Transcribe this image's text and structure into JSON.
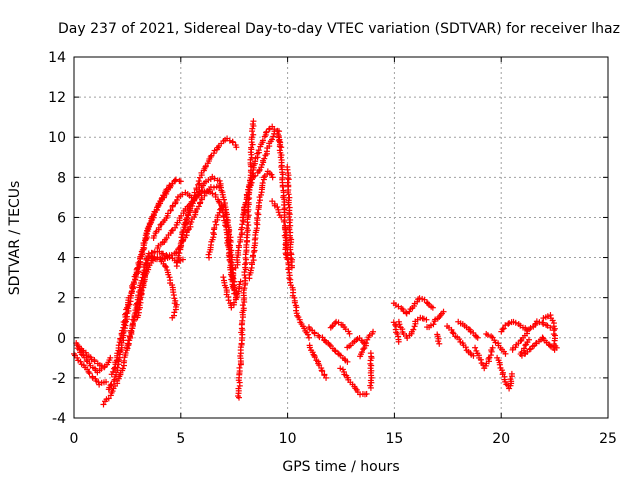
{
  "chart_data": {
    "type": "scatter",
    "title": "Day 237 of 2021, Sidereal Day-to-day VTEC variation (SDTVAR) for receiver lhaz",
    "xlabel": "GPS time / hours",
    "ylabel": "SDTVAR / TECUs",
    "xlim": [
      0,
      25
    ],
    "ylim": [
      -4,
      14
    ],
    "xticks": [
      0,
      5,
      10,
      15,
      20,
      25
    ],
    "yticks": [
      -4,
      -2,
      0,
      2,
      4,
      6,
      8,
      10,
      12,
      14
    ],
    "grid": true,
    "marker": "+",
    "color": "#ff0000",
    "tracks": [
      [
        [
          0.0,
          -0.8
        ],
        [
          0.3,
          -1.2
        ],
        [
          0.6,
          -1.6
        ],
        [
          0.9,
          -2.0
        ],
        [
          1.2,
          -2.3
        ],
        [
          1.5,
          -2.2
        ]
      ],
      [
        [
          0.2,
          -0.5
        ],
        [
          0.5,
          -1.0
        ],
        [
          0.8,
          -1.4
        ],
        [
          1.1,
          -1.7
        ],
        [
          1.4,
          -1.5
        ],
        [
          1.7,
          -1.0
        ]
      ],
      [
        [
          0.1,
          -0.3
        ],
        [
          0.4,
          -0.6
        ],
        [
          0.7,
          -0.9
        ],
        [
          1.0,
          -1.2
        ],
        [
          1.3,
          -1.4
        ]
      ],
      [
        [
          1.4,
          -3.3
        ],
        [
          1.7,
          -2.9
        ],
        [
          2.0,
          -2.3
        ],
        [
          2.3,
          -1.5
        ],
        [
          2.5,
          -0.5
        ],
        [
          2.7,
          0.5
        ],
        [
          2.9,
          1.5
        ],
        [
          3.1,
          2.5
        ],
        [
          3.3,
          3.5
        ],
        [
          3.5,
          4.2
        ]
      ],
      [
        [
          1.6,
          -2.6
        ],
        [
          1.9,
          -2.1
        ],
        [
          2.1,
          -1.2
        ],
        [
          2.3,
          0.0
        ],
        [
          2.5,
          1.2
        ],
        [
          2.7,
          2.2
        ],
        [
          2.9,
          3.0
        ],
        [
          3.1,
          3.8
        ],
        [
          3.3,
          4.6
        ],
        [
          3.5,
          5.4
        ],
        [
          3.7,
          6.0
        ],
        [
          3.9,
          6.5
        ],
        [
          4.1,
          6.9
        ],
        [
          4.3,
          7.3
        ],
        [
          4.5,
          7.6
        ],
        [
          4.7,
          7.8
        ]
      ],
      [
        [
          1.8,
          -1.8
        ],
        [
          2.0,
          -1.0
        ],
        [
          2.2,
          0.0
        ],
        [
          2.4,
          1.0
        ],
        [
          2.6,
          2.0
        ],
        [
          2.8,
          2.8
        ],
        [
          3.0,
          3.6
        ],
        [
          3.2,
          4.4
        ],
        [
          3.4,
          5.2
        ],
        [
          3.6,
          5.8
        ],
        [
          3.8,
          6.3
        ],
        [
          4.0,
          6.7
        ],
        [
          4.2,
          7.0
        ],
        [
          4.4,
          7.4
        ],
        [
          4.6,
          7.7
        ],
        [
          4.8,
          7.9
        ],
        [
          5.0,
          7.8
        ]
      ],
      [
        [
          2.5,
          -0.5
        ],
        [
          2.8,
          0.8
        ],
        [
          3.1,
          2.0
        ],
        [
          3.4,
          3.3
        ],
        [
          3.7,
          4.0
        ],
        [
          4.0,
          4.0
        ],
        [
          4.3,
          3.5
        ],
        [
          4.6,
          2.5
        ],
        [
          4.8,
          1.5
        ],
        [
          4.6,
          1.0
        ]
      ],
      [
        [
          3.0,
          1.0
        ],
        [
          3.2,
          2.5
        ],
        [
          3.4,
          3.6
        ],
        [
          3.6,
          4.2
        ],
        [
          3.9,
          4.3
        ],
        [
          4.2,
          4.2
        ],
        [
          4.5,
          4.0
        ],
        [
          4.8,
          3.8
        ],
        [
          5.1,
          3.9
        ]
      ],
      [
        [
          3.7,
          5.0
        ],
        [
          4.0,
          5.5
        ],
        [
          4.3,
          6.0
        ],
        [
          4.6,
          6.5
        ],
        [
          4.9,
          7.0
        ],
        [
          5.2,
          7.2
        ],
        [
          5.5,
          7.0
        ]
      ],
      [
        [
          3.6,
          4.0
        ],
        [
          4.0,
          3.9
        ],
        [
          4.4,
          4.0
        ],
        [
          4.8,
          4.3
        ],
        [
          5.2,
          5.0
        ],
        [
          5.6,
          6.0
        ],
        [
          6.0,
          7.0
        ],
        [
          6.4,
          7.5
        ],
        [
          6.8,
          7.5
        ]
      ],
      [
        [
          3.9,
          4.5
        ],
        [
          4.2,
          4.8
        ],
        [
          4.5,
          5.2
        ],
        [
          4.8,
          5.6
        ],
        [
          5.1,
          6.2
        ],
        [
          5.4,
          6.6
        ],
        [
          5.7,
          7.0
        ],
        [
          6.0,
          7.3
        ],
        [
          6.3,
          7.3
        ],
        [
          6.6,
          7.1
        ],
        [
          6.9,
          6.6
        ],
        [
          7.1,
          5.5
        ],
        [
          7.3,
          4.0
        ],
        [
          7.5,
          2.8
        ]
      ],
      [
        [
          4.8,
          3.6
        ],
        [
          5.0,
          4.5
        ],
        [
          5.2,
          5.5
        ],
        [
          5.4,
          6.3
        ],
        [
          5.6,
          7.0
        ],
        [
          5.8,
          7.6
        ],
        [
          6.0,
          8.2
        ],
        [
          6.2,
          8.6
        ],
        [
          6.4,
          9.0
        ],
        [
          6.6,
          9.3
        ],
        [
          6.8,
          9.6
        ],
        [
          7.0,
          9.8
        ],
        [
          7.2,
          9.9
        ],
        [
          7.4,
          9.8
        ],
        [
          7.6,
          9.5
        ]
      ],
      [
        [
          5.0,
          5.0
        ],
        [
          5.3,
          6.0
        ],
        [
          5.6,
          6.8
        ],
        [
          5.9,
          7.4
        ],
        [
          6.2,
          7.8
        ],
        [
          6.5,
          8.0
        ],
        [
          6.8,
          7.8
        ],
        [
          7.0,
          7.0
        ],
        [
          7.2,
          5.5
        ],
        [
          7.3,
          4.0
        ],
        [
          7.4,
          2.8
        ],
        [
          7.5,
          2.2
        ]
      ],
      [
        [
          6.3,
          4.0
        ],
        [
          6.5,
          5.0
        ],
        [
          6.7,
          6.0
        ],
        [
          6.9,
          6.6
        ],
        [
          7.1,
          6.4
        ],
        [
          7.3,
          5.0
        ],
        [
          7.4,
          3.5
        ],
        [
          7.5,
          2.5
        ],
        [
          7.6,
          2.0
        ]
      ],
      [
        [
          7.0,
          3.0
        ],
        [
          7.2,
          2.0
        ],
        [
          7.4,
          1.5
        ],
        [
          7.6,
          2.0
        ],
        [
          7.8,
          2.8
        ]
      ],
      [
        [
          7.7,
          -3.0
        ],
        [
          7.75,
          -2.0
        ],
        [
          7.8,
          -1.0
        ],
        [
          7.85,
          0.0
        ],
        [
          7.9,
          1.0
        ],
        [
          7.95,
          2.0
        ],
        [
          8.0,
          3.0
        ],
        [
          8.05,
          4.0
        ],
        [
          8.1,
          5.0
        ],
        [
          8.15,
          6.0
        ],
        [
          8.2,
          7.0
        ],
        [
          8.25,
          8.0
        ],
        [
          8.3,
          9.0
        ],
        [
          8.35,
          10.0
        ],
        [
          8.4,
          10.8
        ]
      ],
      [
        [
          7.6,
          3.5
        ],
        [
          7.8,
          5.0
        ],
        [
          8.0,
          6.5
        ],
        [
          8.2,
          7.5
        ],
        [
          8.4,
          8.0
        ],
        [
          8.6,
          8.2
        ],
        [
          8.8,
          8.6
        ],
        [
          9.0,
          9.2
        ],
        [
          9.2,
          9.8
        ],
        [
          9.4,
          10.3
        ],
        [
          9.6,
          10.3
        ]
      ],
      [
        [
          7.9,
          6.0
        ],
        [
          8.1,
          7.0
        ],
        [
          8.3,
          8.0
        ],
        [
          8.5,
          8.8
        ],
        [
          8.7,
          9.5
        ],
        [
          8.9,
          10.0
        ],
        [
          9.1,
          10.4
        ],
        [
          9.3,
          10.5
        ],
        [
          9.5,
          10.3
        ],
        [
          9.7,
          9.5
        ]
      ],
      [
        [
          8.2,
          3.0
        ],
        [
          8.4,
          4.0
        ],
        [
          8.5,
          5.0
        ],
        [
          8.6,
          6.0
        ],
        [
          8.7,
          7.0
        ],
        [
          8.9,
          8.0
        ],
        [
          9.1,
          8.3
        ],
        [
          9.3,
          8.0
        ]
      ],
      [
        [
          9.3,
          6.8
        ],
        [
          9.5,
          6.5
        ],
        [
          9.7,
          6.0
        ]
      ],
      [
        [
          9.6,
          10.0
        ],
        [
          9.7,
          9.0
        ],
        [
          9.8,
          7.5
        ],
        [
          9.85,
          6.0
        ],
        [
          9.9,
          5.0
        ],
        [
          9.95,
          4.0
        ]
      ],
      [
        [
          10.0,
          8.5
        ],
        [
          10.05,
          7.0
        ],
        [
          10.1,
          5.5
        ],
        [
          10.15,
          4.5
        ],
        [
          10.2,
          3.5
        ]
      ],
      [
        [
          9.9,
          5.5
        ],
        [
          10.0,
          4.0
        ],
        [
          10.1,
          3.0
        ],
        [
          10.3,
          2.0
        ],
        [
          10.5,
          1.0
        ],
        [
          10.8,
          0.5
        ],
        [
          11.0,
          0.0
        ]
      ],
      [
        [
          11.0,
          -0.4
        ],
        [
          11.2,
          -0.8
        ],
        [
          11.4,
          -1.2
        ],
        [
          11.6,
          -1.6
        ],
        [
          11.8,
          -2.0
        ]
      ],
      [
        [
          11.0,
          0.5
        ],
        [
          11.3,
          0.2
        ],
        [
          11.6,
          0.0
        ],
        [
          11.9,
          -0.3
        ],
        [
          12.2,
          -0.6
        ],
        [
          12.5,
          -0.9
        ],
        [
          12.8,
          -1.2
        ]
      ],
      [
        [
          12.0,
          0.5
        ],
        [
          12.3,
          0.8
        ],
        [
          12.6,
          0.6
        ],
        [
          12.9,
          0.2
        ]
      ],
      [
        [
          12.5,
          -1.5
        ],
        [
          12.8,
          -2.0
        ],
        [
          13.1,
          -2.4
        ],
        [
          13.4,
          -2.8
        ],
        [
          13.7,
          -2.8
        ]
      ],
      [
        [
          12.8,
          -0.5
        ],
        [
          13.1,
          -0.2
        ],
        [
          13.4,
          0.0
        ],
        [
          13.6,
          -0.3
        ]
      ],
      [
        [
          13.4,
          -0.9
        ],
        [
          13.6,
          -0.5
        ],
        [
          13.8,
          0.0
        ],
        [
          14.0,
          0.3
        ]
      ],
      [
        [
          13.9,
          -0.8
        ],
        [
          13.9,
          -2.5
        ]
      ],
      [
        [
          15.0,
          1.7
        ],
        [
          15.3,
          1.5
        ],
        [
          15.6,
          1.2
        ],
        [
          15.9,
          1.6
        ],
        [
          16.2,
          2.0
        ],
        [
          16.5,
          1.8
        ],
        [
          16.8,
          1.5
        ]
      ],
      [
        [
          15.2,
          0.8
        ],
        [
          15.4,
          0.3
        ],
        [
          15.6,
          0.0
        ],
        [
          15.8,
          0.2
        ],
        [
          16.0,
          0.8
        ],
        [
          16.2,
          1.0
        ],
        [
          16.5,
          0.9
        ]
      ],
      [
        [
          15.0,
          0.8
        ],
        [
          15.1,
          0.3
        ],
        [
          15.2,
          -0.2
        ]
      ],
      [
        [
          16.5,
          0.5
        ],
        [
          16.8,
          0.7
        ],
        [
          17.0,
          1.0
        ],
        [
          17.3,
          1.3
        ]
      ],
      [
        [
          17.0,
          0.2
        ],
        [
          17.1,
          -0.3
        ]
      ],
      [
        [
          17.5,
          0.6
        ],
        [
          17.8,
          0.2
        ],
        [
          18.1,
          -0.2
        ],
        [
          18.4,
          -0.6
        ],
        [
          18.7,
          -0.9
        ]
      ],
      [
        [
          18.0,
          0.8
        ],
        [
          18.3,
          0.6
        ],
        [
          18.6,
          0.3
        ],
        [
          18.9,
          0.0
        ]
      ],
      [
        [
          18.8,
          -0.5
        ],
        [
          19.0,
          -1.0
        ],
        [
          19.2,
          -1.5
        ],
        [
          19.4,
          -1.2
        ],
        [
          19.6,
          -0.5
        ]
      ],
      [
        [
          19.3,
          0.2
        ],
        [
          19.6,
          0.0
        ],
        [
          19.9,
          -0.4
        ],
        [
          20.2,
          -0.8
        ]
      ],
      [
        [
          19.8,
          -1.0
        ],
        [
          20.0,
          -1.5
        ],
        [
          20.2,
          -2.2
        ],
        [
          20.4,
          -2.5
        ],
        [
          20.5,
          -1.8
        ]
      ],
      [
        [
          20.0,
          0.3
        ],
        [
          20.3,
          0.7
        ],
        [
          20.6,
          0.8
        ],
        [
          20.9,
          0.6
        ],
        [
          21.2,
          0.4
        ]
      ],
      [
        [
          20.5,
          -0.6
        ],
        [
          20.8,
          -0.3
        ],
        [
          21.1,
          0.1
        ],
        [
          21.4,
          0.5
        ],
        [
          21.7,
          0.8
        ],
        [
          22.0,
          0.7
        ],
        [
          22.3,
          0.5
        ]
      ],
      [
        [
          21.0,
          -0.9
        ],
        [
          21.3,
          -0.6
        ],
        [
          21.6,
          -0.3
        ],
        [
          21.9,
          0.0
        ],
        [
          22.2,
          -0.3
        ],
        [
          22.5,
          -0.6
        ]
      ],
      [
        [
          20.9,
          -0.8
        ],
        [
          21.1,
          -0.5
        ],
        [
          21.3,
          -0.1
        ]
      ],
      [
        [
          22.0,
          1.0
        ],
        [
          22.3,
          1.1
        ],
        [
          22.5,
          0.6
        ],
        [
          22.5,
          -0.3
        ],
        [
          22.6,
          -0.5
        ]
      ]
    ]
  }
}
